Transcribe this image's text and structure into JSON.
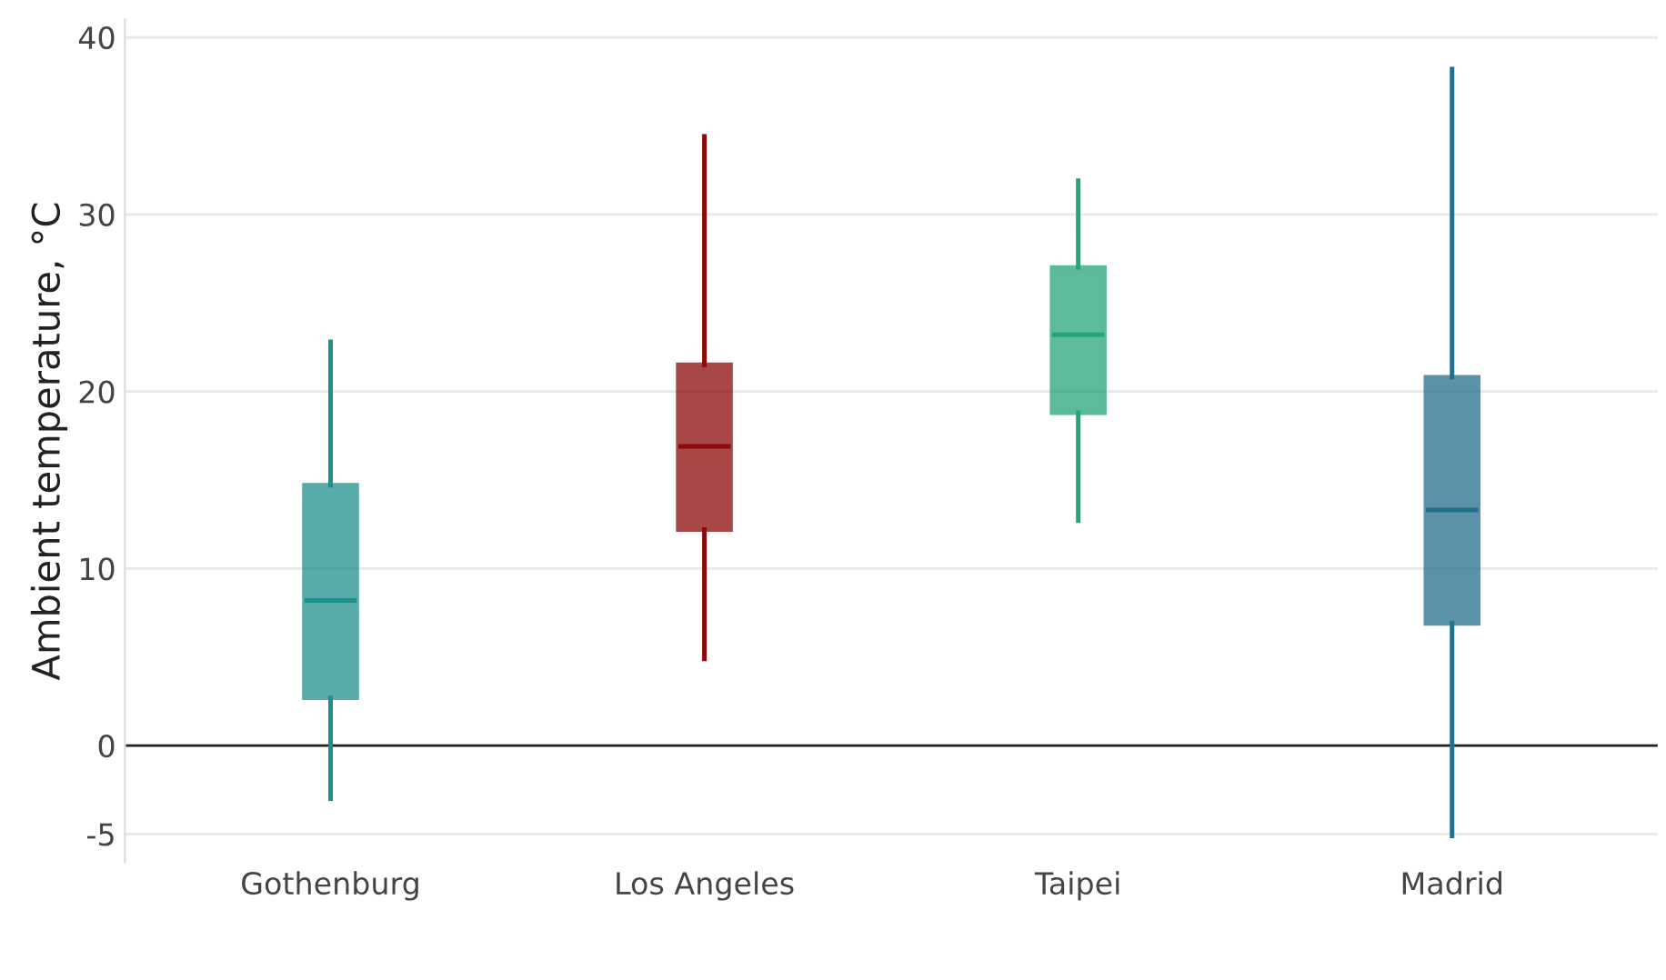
{
  "chart_data": {
    "type": "box",
    "ylabel": "Ambient temperature, °C",
    "categories": [
      "Gothenburg",
      "Los Angeles",
      "Taipei",
      "Madrid"
    ],
    "colors": [
      "#1f8f8c",
      "#8b0a0a",
      "#27a37a",
      "#23708a"
    ],
    "boxes": [
      {
        "low": -3.0,
        "q1": 2.7,
        "median": 8.2,
        "q3": 14.7,
        "high": 22.8
      },
      {
        "low": 4.9,
        "q1": 12.2,
        "median": 16.9,
        "q3": 21.5,
        "high": 34.4
      },
      {
        "low": 12.7,
        "q1": 18.8,
        "median": 23.2,
        "q3": 27.0,
        "high": 31.9
      },
      {
        "low": -5.1,
        "q1": 6.9,
        "median": 13.3,
        "q3": 20.8,
        "high": 38.2
      }
    ],
    "ylim": [
      -6.6,
      41
    ],
    "yticks": [
      -5,
      0,
      10,
      20,
      30,
      40
    ],
    "grid": "y",
    "ref_lines": [
      {
        "axis": "y",
        "value": 0,
        "color": "#222222"
      }
    ]
  }
}
